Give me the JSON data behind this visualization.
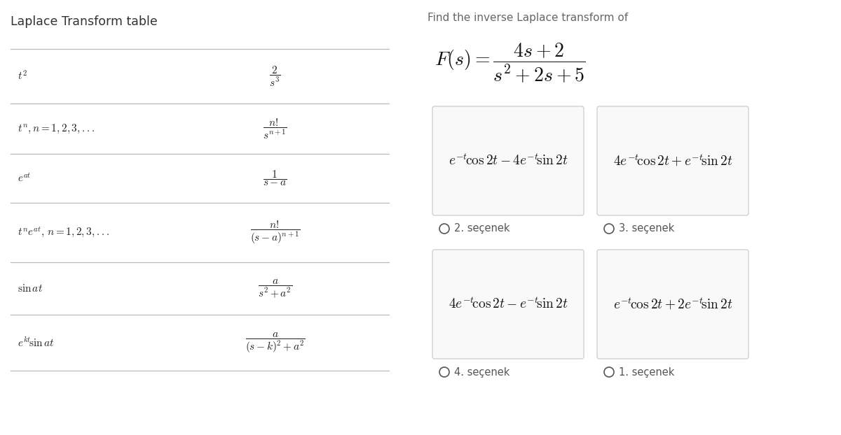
{
  "title_left": "Laplace Transform table",
  "title_right": "Find the inverse Laplace transform of",
  "title_left_color": "#333333",
  "title_right_color": "#666666",
  "bg_color": "#ffffff",
  "table_rows": [
    {
      "left": "$t^2$",
      "right": "$\\dfrac{2}{s^3}$"
    },
    {
      "left": "$t^n,n = 1, 2, 3, ...$",
      "right": "$\\dfrac{n!}{s^{n+1}}$"
    },
    {
      "left": "$e^{at}$",
      "right": "$\\dfrac{1}{s - a}$"
    },
    {
      "left": "$t^ne^{at},\\, n = 1, 2, 3,...$",
      "right": "$\\dfrac{n!}{(s-a)^{n+1}}$"
    },
    {
      "left": "$\\sin at$",
      "right": "$\\dfrac{a}{s^2 + a^2}$"
    },
    {
      "left": "$e^{kt}\\!\\sin at$",
      "right": "$\\dfrac{a}{(s-k)^2 + a^2}$"
    }
  ],
  "fs_formula_big": "$F(s)=$",
  "fs_formula_small": "$\\frac{4s+2}{s^2+2s+5}$",
  "options": [
    {
      "text": "$e^{-t}\\!\\cos 2t - 4e^{-t}\\!\\sin 2t$",
      "label": "2. seçenek",
      "col": 0,
      "row": 0
    },
    {
      "text": "$4e^{-t}\\!\\cos 2t + e^{-t}\\!\\sin 2t$",
      "label": "3. seçenek",
      "col": 1,
      "row": 0
    },
    {
      "text": "$4e^{-t}\\!\\cos 2t - e^{-t}\\!\\sin 2t$",
      "label": "4. seçenek",
      "col": 0,
      "row": 1
    },
    {
      "text": "$e^{-t}\\!\\cos 2t + 2e^{-t}\\!\\sin 2t$",
      "label": "1. seçenek",
      "col": 1,
      "row": 1
    }
  ],
  "line_color": "#bbbbbb",
  "box_edge_color": "#cccccc",
  "box_face_color": "#f9f9f9",
  "radio_color": "#555555",
  "label_color": "#555555"
}
